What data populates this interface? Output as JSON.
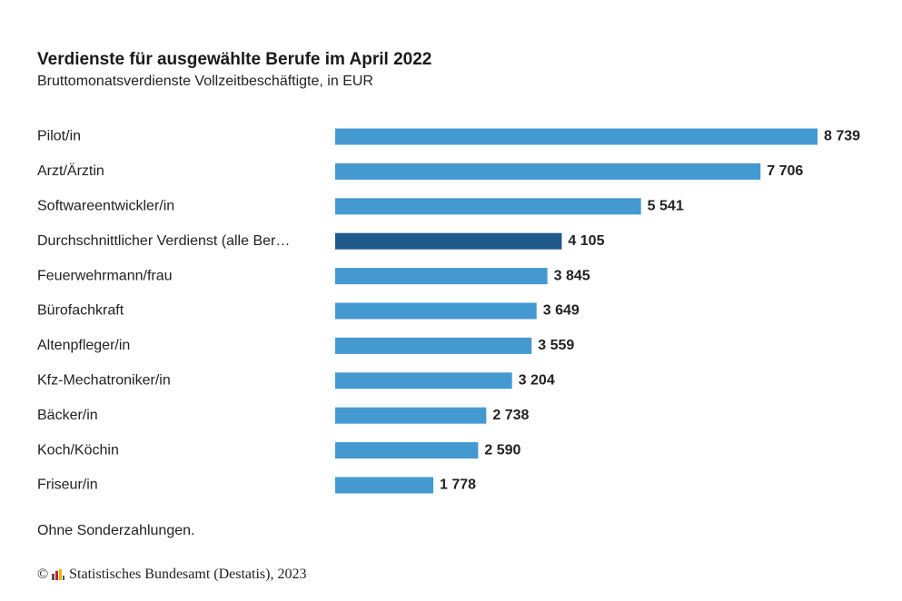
{
  "title": "Verdienste für ausgewählte Berufe im April 2022",
  "subtitle": "Bruttomonatsverdienste Vollzeitbeschäftigte, in EUR",
  "note": "Ohne Sonderzahlungen.",
  "source": {
    "copyright_symbol": "©",
    "text": "Statistisches Bundesamt (Destatis), 2023",
    "logo_icon": "destatis-logo-icon"
  },
  "colors": {
    "bar": "#4499d0",
    "highlight": "#1f5a8a"
  },
  "chart_data": {
    "type": "bar",
    "orientation": "horizontal",
    "title": "Verdienste für ausgewählte Berufe im April 2022",
    "subtitle": "Bruttomonatsverdienste Vollzeitbeschäftigte, in EUR",
    "categories": [
      "Pilot/in",
      "Arzt/Ärztin",
      "Softwareentwickler/in",
      "Durchschnittlicher Verdienst (alle Ber…",
      "Feuerwehrmann/frau",
      "Bürofachkraft",
      "Altenpfleger/in",
      "Kfz-Mechatroniker/in",
      "Bäcker/in",
      "Koch/Köchin",
      "Friseur/in"
    ],
    "values": [
      8739,
      7706,
      5541,
      4105,
      3845,
      3649,
      3559,
      3204,
      2738,
      2590,
      1778
    ],
    "value_labels": [
      "8 739",
      "7 706",
      "5 541",
      "4 105",
      "3 845",
      "3 649",
      "3 559",
      "3 204",
      "2 738",
      "2 590",
      "1 778"
    ],
    "highlight_index": 3,
    "xlim": [
      0,
      8739
    ],
    "grid": false,
    "legend": "none"
  }
}
